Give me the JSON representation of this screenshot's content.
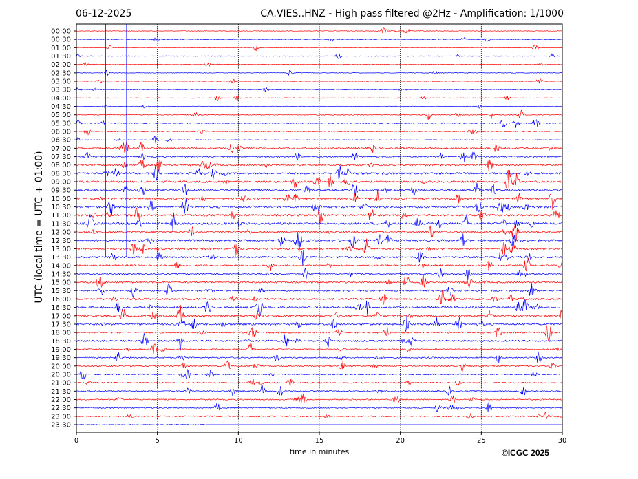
{
  "chart_data": {
    "type": "line",
    "title": "CA.VIES..HNZ - High pass filtered @2Hz - Amplification: 1/1000",
    "date": "06-12-2025",
    "xlabel": "time in minutes",
    "ylabel": "UTC (local time = UTC + 01:00)",
    "xlim": [
      0,
      30
    ],
    "xticks": [
      "0",
      "5",
      "10",
      "15",
      "20",
      "25",
      "30"
    ],
    "grid": "vertical dotted at 5-minute intervals",
    "series_colors": [
      "#ff0000",
      "#0000ff"
    ],
    "rows": [
      "00:00",
      "00:30",
      "01:00",
      "01:30",
      "02:00",
      "02:30",
      "03:00",
      "03:30",
      "04:00",
      "04:30",
      "05:00",
      "05:30",
      "06:00",
      "06:30",
      "07:00",
      "07:30",
      "08:00",
      "08:30",
      "09:00",
      "09:30",
      "10:00",
      "10:30",
      "11:00",
      "11:30",
      "12:00",
      "12:30",
      "13:00",
      "13:30",
      "14:00",
      "14:30",
      "15:00",
      "15:30",
      "16:00",
      "16:30",
      "17:00",
      "17:30",
      "18:00",
      "18:30",
      "19:00",
      "19:30",
      "20:00",
      "20:30",
      "21:00",
      "21:30",
      "22:00",
      "22:30",
      "23:00",
      "23:30"
    ],
    "activity": [
      1,
      1.2,
      1,
      1.2,
      1.1,
      1,
      1,
      1.2,
      1.2,
      1,
      1.6,
      1.6,
      1.4,
      1.2,
      2.8,
      2.4,
      3,
      3.2,
      3.2,
      3,
      3.4,
      3.6,
      3.4,
      3.6,
      3,
      3.4,
      3.2,
      3,
      2.8,
      2.2,
      2.8,
      2.8,
      3,
      3.2,
      3.4,
      3.4,
      2.6,
      2.8,
      2.2,
      2.2,
      2.4,
      2,
      2,
      2.2,
      2,
      2,
      2,
      1.2
    ],
    "last_row_data_until_minute": 8,
    "spike_lines_minutes": [
      1.8,
      3.1
    ]
  },
  "footer": {
    "copyright": "©ICGC 2025"
  }
}
